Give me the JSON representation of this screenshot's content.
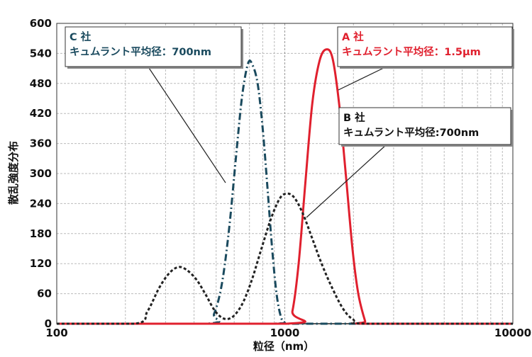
{
  "chart_data": {
    "type": "line",
    "xlabel": "粒径（nm）",
    "ylabel": "散乱強度分布",
    "xscale": "log",
    "xlim": [
      100,
      10000
    ],
    "ylim": [
      0,
      600
    ],
    "x_ticks": [
      "100",
      "1000",
      "10000"
    ],
    "y_ticks": [
      "0",
      "60",
      "120",
      "180",
      "240",
      "300",
      "360",
      "420",
      "480",
      "540",
      "600"
    ],
    "grid": true,
    "series": [
      {
        "name": "C社",
        "color": "#1a4a5e",
        "style": "dash-dot",
        "x": [
          100,
          450,
          490,
          530,
          570,
          610,
          650,
          690,
          720,
          760,
          800,
          840,
          880,
          920,
          960,
          1000,
          1100,
          10000
        ],
        "y": [
          0,
          0,
          20,
          80,
          190,
          330,
          455,
          520,
          518,
          480,
          390,
          270,
          150,
          60,
          15,
          2,
          0,
          0
        ]
      },
      {
        "name": "A社",
        "color": "#e0202e",
        "style": "solid",
        "x": [
          100,
          1020,
          1080,
          1150,
          1230,
          1320,
          1420,
          1520,
          1620,
          1730,
          1850,
          1980,
          2100,
          2250,
          2300,
          10000
        ],
        "y": [
          0,
          0,
          25,
          120,
          280,
          440,
          525,
          548,
          530,
          440,
          300,
          150,
          60,
          5,
          0,
          0
        ]
      },
      {
        "name": "B社",
        "color": "#222222",
        "style": "dotted",
        "x": [
          100,
          220,
          250,
          280,
          310,
          340,
          370,
          410,
          450,
          490,
          530,
          570,
          610,
          660,
          720,
          790,
          870,
          950,
          1020,
          1100,
          1200,
          1320,
          1450,
          1600,
          1800,
          2000,
          2300,
          10000
        ],
        "y": [
          0,
          0,
          25,
          70,
          100,
          113,
          108,
          88,
          58,
          28,
          12,
          10,
          20,
          45,
          90,
          150,
          210,
          250,
          260,
          252,
          220,
          170,
          120,
          75,
          30,
          8,
          0,
          0
        ]
      }
    ],
    "annotations": [
      {
        "series": "C社",
        "line1": "C 社",
        "line2": "キュムラント平均径：700nm",
        "color": "#1a4a5e"
      },
      {
        "series": "A社",
        "line1": "A 社",
        "line2": "キュムラント平均径：1.5μm",
        "color": "#e0202e"
      },
      {
        "series": "B社",
        "line1": "B 社",
        "line2": "キュムラント平均径:700nm",
        "color": "#111111"
      }
    ]
  }
}
